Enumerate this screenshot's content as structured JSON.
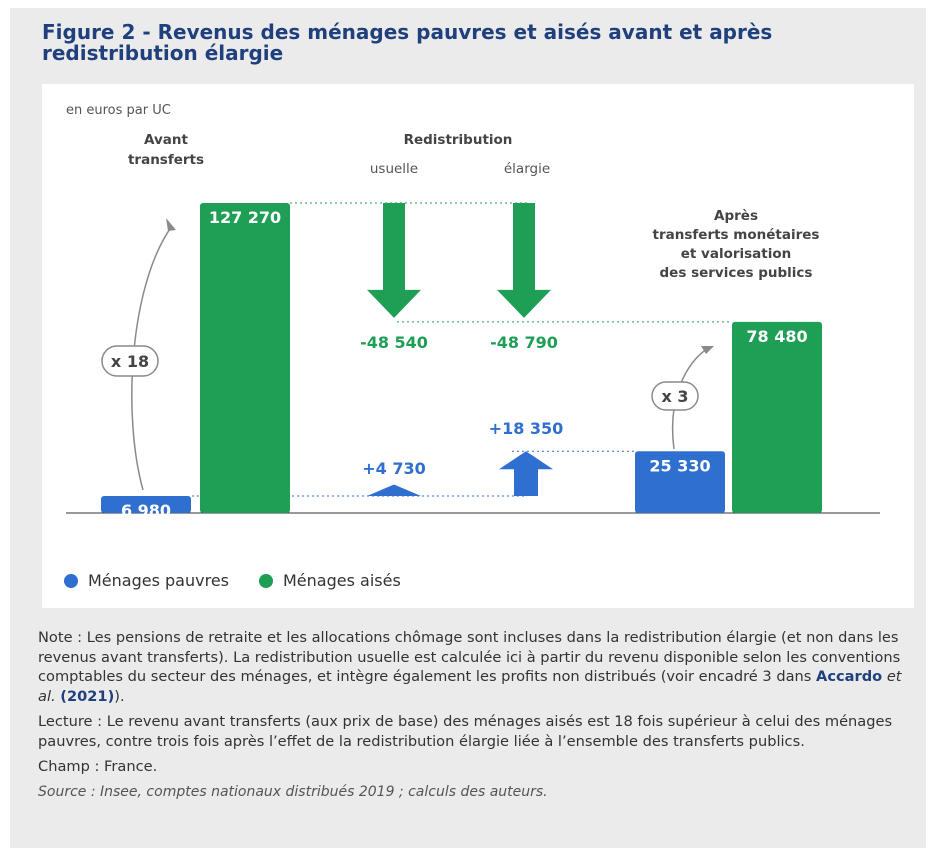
{
  "title": "Figure 2 - Revenus des ménages pauvres et aisés avant et après redistribution élargie",
  "chart_data": {
    "type": "bar",
    "unit_label": "en euros par UC",
    "headers": {
      "avant": [
        "Avant",
        "transferts"
      ],
      "redistribution": "Redistribution",
      "usuelle": "usuelle",
      "elargie": "élargie",
      "apres": [
        "Après",
        "transferts monétaires",
        "et valorisation",
        "des services publics"
      ]
    },
    "series": [
      {
        "name": "Ménages pauvres",
        "color": "#2f6fcf"
      },
      {
        "name": "Ménages aisés",
        "color": "#1f9e55"
      }
    ],
    "bars": [
      {
        "group": "avant",
        "series": "Ménages pauvres",
        "value": 6980,
        "label": "6 980"
      },
      {
        "group": "avant",
        "series": "Ménages aisés",
        "value": 127270,
        "label": "127 270"
      },
      {
        "group": "apres",
        "series": "Ménages pauvres",
        "value": 25330,
        "label": "25 330"
      },
      {
        "group": "apres",
        "series": "Ménages aisés",
        "value": 78480,
        "label": "78 480"
      }
    ],
    "flows": [
      {
        "group": "usuelle",
        "series": "Ménages aisés",
        "value": -48540,
        "label": "-48 540"
      },
      {
        "group": "elargie",
        "series": "Ménages aisés",
        "value": -48790,
        "label": "-48 790"
      },
      {
        "group": "usuelle",
        "series": "Ménages pauvres",
        "value": 4730,
        "label": "+4 730"
      },
      {
        "group": "elargie",
        "series": "Ménages pauvres",
        "value": 18350,
        "label": "+18 350"
      }
    ],
    "multipliers": [
      {
        "group": "avant",
        "label": "x 18"
      },
      {
        "group": "apres",
        "label": "x 3"
      }
    ]
  },
  "legend": [
    "Ménages pauvres",
    "Ménages aisés"
  ],
  "notes": {
    "note_before": "Note : Les pensions de retraite et les allocations chômage sont incluses dans la redistribution élargie (et non dans les revenus avant transferts). La redistribution usuelle est calculée ici à partir du revenu disponible selon les conventions comptables du secteur des ménages, et intègre également les profits non distribués (voir encadré 3 dans ",
    "ref_author": "Accardo",
    "ref_etal": "et al.",
    "ref_year": "(2021)",
    "note_after": ").",
    "lecture": "Lecture : Le revenu avant transferts (aux prix de base) des ménages aisés est 18 fois supérieur à celui des ménages pauvres, contre trois fois après l’effet de la redistribution élargie liée à l’ensemble des transferts publics.",
    "champ": "Champ : France.",
    "source": "Source : Insee, comptes nationaux distribués 2019 ; calculs des auteurs."
  }
}
